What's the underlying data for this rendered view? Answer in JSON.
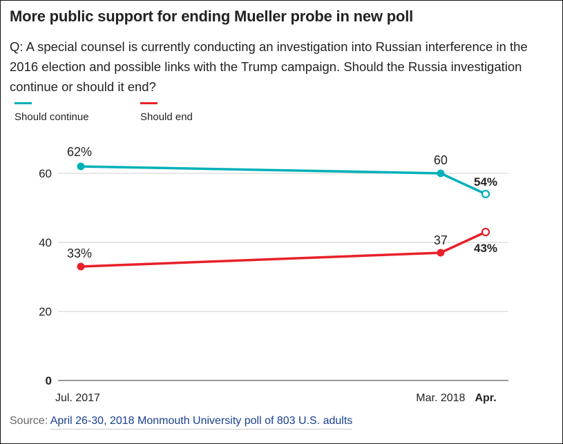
{
  "header": {
    "title": "More public support for ending Mueller probe in new poll",
    "subtitle": "Q: A special counsel is currently conducting an investigation into Russian interference in the 2016 election and possible links with the Trump campaign. Should the Russia investigation continue or should it end?"
  },
  "legend": [
    {
      "label": "Should continue",
      "color": "#00b0b9"
    },
    {
      "label": "Should end",
      "color": "#e8202a"
    }
  ],
  "chart_data": {
    "type": "line",
    "title": "More public support for ending Mueller probe in new poll",
    "xlabel": "",
    "ylabel": "",
    "x": [
      "Jul. 2017",
      "Mar. 2018",
      "Apr."
    ],
    "x_time_index": [
      0,
      8,
      9
    ],
    "ylim": [
      0,
      65
    ],
    "yticks": [
      0,
      20,
      40,
      60
    ],
    "ytick_labels": [
      "0",
      "20",
      "40",
      "60"
    ],
    "grid": true,
    "legend_position": "top-left",
    "series": [
      {
        "name": "Should continue",
        "color": "#00b0b9",
        "values": [
          62,
          60,
          54
        ],
        "labels": [
          "62%",
          "60",
          "54%"
        ]
      },
      {
        "name": "Should end",
        "color": "#e8202a",
        "values": [
          33,
          37,
          43
        ],
        "labels": [
          "33%",
          "37",
          "43%"
        ]
      }
    ]
  },
  "source": {
    "prefix": "Source: ",
    "link_text": "April 26-30, 2018 Monmouth University poll of 803 U.S. adults"
  }
}
